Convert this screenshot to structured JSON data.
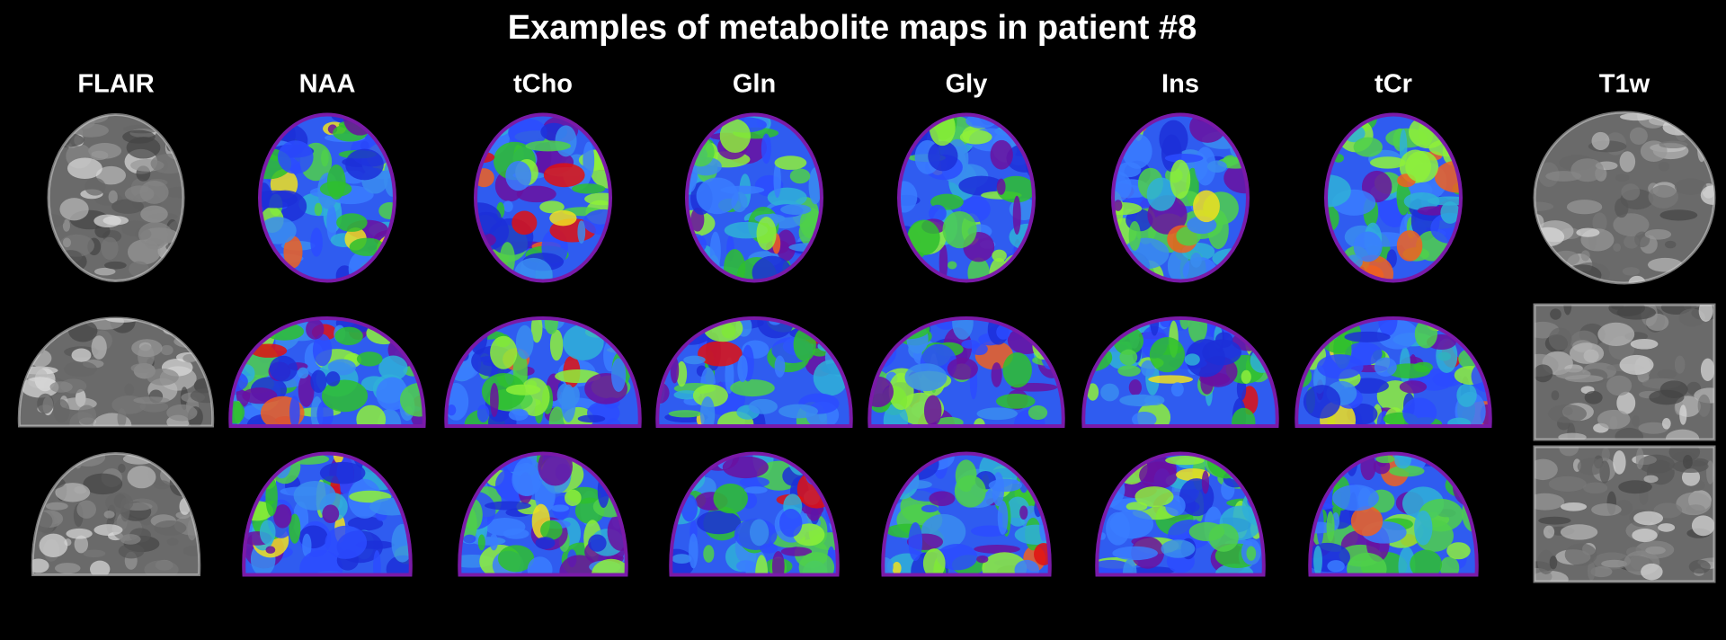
{
  "title": "Examples of metabolite maps in patient #8",
  "columns": [
    "FLAIR",
    "NAA",
    "tCho",
    "Gln",
    "Gly",
    "Ins",
    "tCr",
    "T1w"
  ]
}
